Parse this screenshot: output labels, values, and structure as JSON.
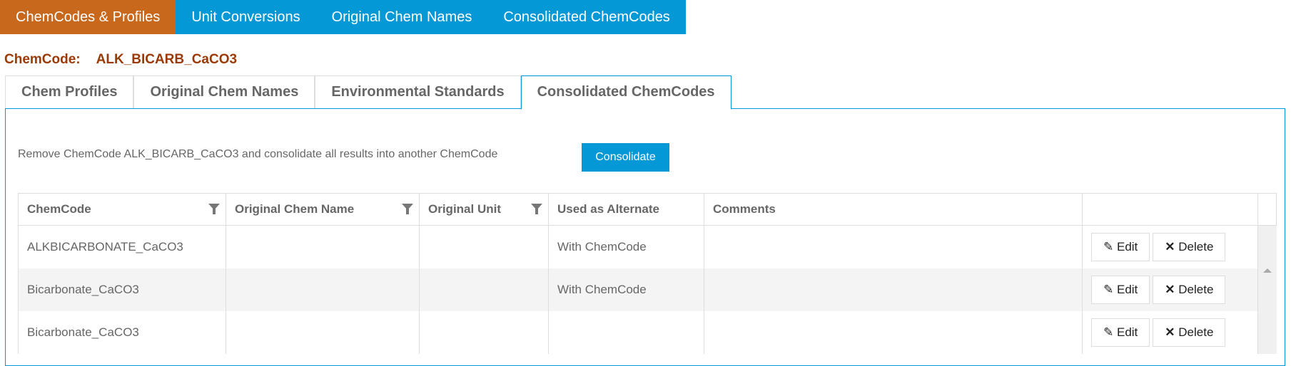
{
  "topnav": {
    "items": [
      "ChemCodes & Profiles",
      "Unit Conversions",
      "Original Chem Names",
      "Consolidated ChemCodes"
    ],
    "active": 0
  },
  "chemcode": {
    "label": "ChemCode:",
    "value": "ALK_BICARB_CaCO3"
  },
  "tabs": {
    "items": [
      "Chem Profiles",
      "Original Chem Names",
      "Environmental Standards",
      "Consolidated ChemCodes"
    ],
    "active": 3
  },
  "panel": {
    "description": "Remove ChemCode ALK_BICARB_CaCO3 and consolidate all results into another ChemCode",
    "consolidate_label": "Consolidate"
  },
  "table": {
    "headers": [
      "ChemCode",
      "Original Chem Name",
      "Original Unit",
      "Used as Alternate",
      "Comments"
    ],
    "rows": [
      [
        "ALKBICARBONATE_CaCO3",
        "",
        "",
        "With ChemCode",
        ""
      ],
      [
        "Bicarbonate_CaCO3",
        "",
        "",
        "With ChemCode",
        ""
      ],
      [
        "Bicarbonate_CaCO3",
        "",
        "",
        "",
        ""
      ]
    ],
    "edit_label": "Edit",
    "delete_label": "Delete"
  },
  "colors": {
    "nav_blue": "#0598d6",
    "nav_active": "#c8681c",
    "chemcode": "#9b3a06"
  }
}
